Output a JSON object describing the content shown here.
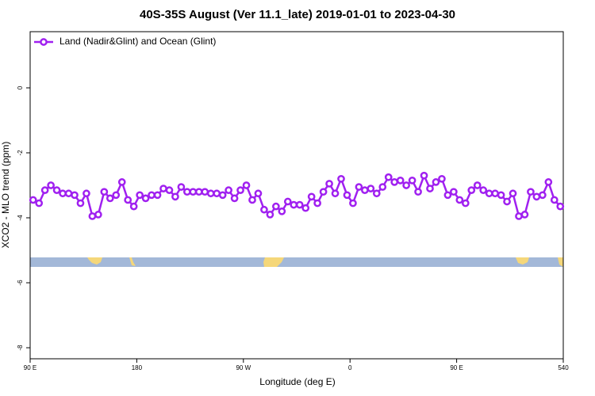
{
  "chart_data": {
    "type": "line",
    "title": "40S-35S August (Ver 11.1_late)   2019-01-01 to 2023-04-30",
    "xlabel": "Longitude (deg E)",
    "ylabel": "XCO2 - MLO trend (ppm)",
    "legend": "top-left",
    "xlim": [
      90,
      540
    ],
    "ylim": [
      -8.34,
      1.73
    ],
    "xticks": [
      {
        "value": 90,
        "label": "90 E"
      },
      180,
      {
        "value": 270,
        "label": "90 W"
      },
      {
        "value": 360,
        "label": "0"
      },
      {
        "value": 450,
        "label": "90 E"
      },
      540
    ],
    "yticks": [
      0,
      -2,
      -4,
      -6,
      -8
    ],
    "x": [
      92.5,
      97.5,
      102.5,
      107.5,
      112.5,
      117.5,
      122.5,
      127.5,
      132.5,
      137.5,
      142.5,
      147.5,
      152.5,
      157.5,
      162.5,
      167.5,
      172.5,
      177.5,
      182.5,
      187.5,
      192.5,
      197.5,
      202.5,
      207.5,
      212.5,
      217.5,
      222.5,
      227.5,
      232.5,
      237.5,
      242.5,
      247.5,
      252.5,
      257.5,
      262.5,
      267.5,
      272.5,
      277.5,
      282.5,
      287.5,
      292.5,
      297.5,
      302.5,
      307.5,
      312.5,
      317.5,
      322.5,
      327.5,
      332.5,
      337.5,
      342.5,
      347.5,
      352.5,
      357.5,
      362.5,
      367.5,
      372.5,
      377.5,
      382.5,
      387.5,
      392.5,
      397.5,
      402.5,
      407.5,
      412.5,
      417.5,
      422.5,
      427.5,
      432.5,
      437.5,
      442.5,
      447.5,
      452.5,
      457.5,
      462.5,
      467.5,
      472.5,
      477.5,
      482.5,
      487.5,
      492.5,
      497.5,
      502.5,
      507.5,
      512.5,
      517.5,
      522.5,
      527.5,
      532.5,
      537.5
    ],
    "series": [
      {
        "name": "Land (Nadir&Glint) and Ocean (Glint)",
        "color": "#a020f0",
        "values": [
          -3.45,
          -3.55,
          -3.15,
          -3.0,
          -3.15,
          -3.25,
          -3.25,
          -3.3,
          -3.55,
          -3.25,
          -3.95,
          -3.9,
          -3.2,
          -3.4,
          -3.3,
          -2.9,
          -3.45,
          -3.65,
          -3.3,
          -3.4,
          -3.3,
          -3.3,
          -3.1,
          -3.15,
          -3.35,
          -3.05,
          -3.2,
          -3.2,
          -3.2,
          -3.2,
          -3.25,
          -3.25,
          -3.3,
          -3.15,
          -3.4,
          -3.15,
          -3.0,
          -3.45,
          -3.25,
          -3.75,
          -3.9,
          -3.65,
          -3.8,
          -3.5,
          -3.6,
          -3.6,
          -3.7,
          -3.35,
          -3.55,
          -3.2,
          -2.95,
          -3.25,
          -2.8,
          -3.3,
          -3.55,
          -3.05,
          -3.15,
          -3.1,
          -3.25,
          -3.05,
          -2.75,
          -2.9,
          -2.85,
          -3.0,
          -2.85,
          -3.2,
          -2.7,
          -3.1,
          -2.9,
          -2.8,
          -3.3,
          -3.2,
          -3.45,
          -3.55,
          -3.15,
          -3.0,
          -3.15,
          -3.25,
          -3.25,
          -3.3,
          -3.5,
          -3.25,
          -3.95,
          -3.9,
          -3.2,
          -3.35,
          -3.3,
          -2.9,
          -3.45,
          -3.65
        ]
      }
    ]
  }
}
